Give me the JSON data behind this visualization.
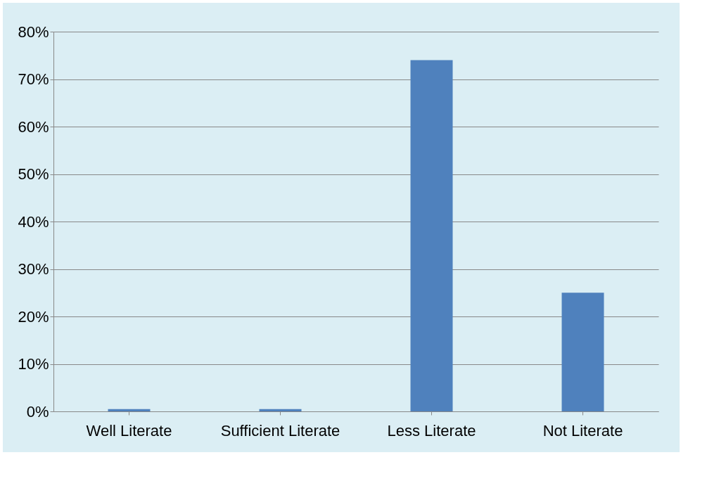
{
  "chart_data": {
    "type": "bar",
    "categories": [
      "Well Literate",
      "Sufficient Literate",
      "Less Literate",
      "Not Literate"
    ],
    "values": [
      0.5,
      0.5,
      74,
      25
    ],
    "color": "#4f81bd",
    "ylim": [
      0,
      80
    ],
    "yticks": [
      {
        "value": 0,
        "label": "0%"
      },
      {
        "value": 10,
        "label": "10%"
      },
      {
        "value": 20,
        "label": "20%"
      },
      {
        "value": 30,
        "label": "30%"
      },
      {
        "value": 40,
        "label": "40%"
      },
      {
        "value": 50,
        "label": "50%"
      },
      {
        "value": 60,
        "label": "60%"
      },
      {
        "value": 70,
        "label": "70%"
      },
      {
        "value": 80,
        "label": "80%"
      }
    ],
    "grid": "y"
  }
}
